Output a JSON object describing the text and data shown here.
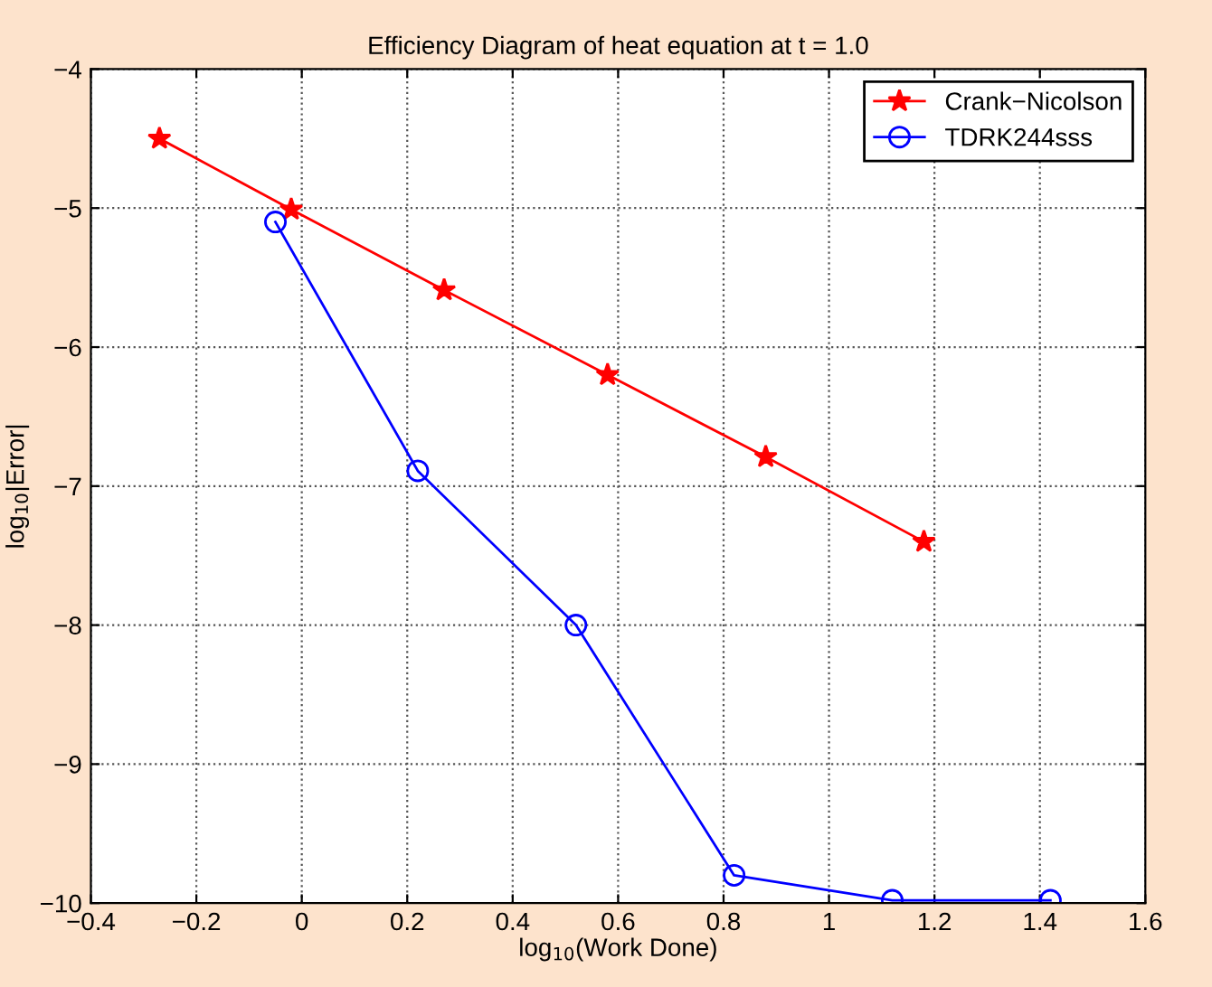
{
  "chart_data": {
    "type": "line",
    "title": "Efficiency Diagram of heat equation at t = 1.0",
    "xlabel": "log$_{10}$(Work Done)",
    "ylabel": "log$_{10}$|Error|",
    "series": [
      {
        "name": "Crank−Nicolson",
        "color": "#ff0000",
        "marker": "star",
        "x": [
          -0.27,
          -0.02,
          0.27,
          0.58,
          0.88,
          1.18
        ],
        "values": [
          -4.5,
          -5.01,
          -5.59,
          -6.2,
          -6.79,
          -7.4
        ]
      },
      {
        "name": "TDRK244sss",
        "color": "#0000ff",
        "marker": "circle",
        "x": [
          -0.05,
          0.22,
          0.52,
          0.82,
          1.12,
          1.42
        ],
        "values": [
          -5.1,
          -6.89,
          -8.0,
          -9.8,
          -9.98,
          -9.98
        ]
      }
    ],
    "xlim": [
      -0.4,
      1.6
    ],
    "xticks": [
      -0.4,
      -0.2,
      0,
      0.2,
      0.4,
      0.6,
      0.8,
      1,
      1.2,
      1.4,
      1.6
    ],
    "ylim": [
      -10,
      -4
    ],
    "yticks": [
      -10,
      -9,
      -8,
      -7,
      -6,
      -5,
      -4
    ],
    "grid": true,
    "legend": "top right",
    "line_style": "solid"
  }
}
